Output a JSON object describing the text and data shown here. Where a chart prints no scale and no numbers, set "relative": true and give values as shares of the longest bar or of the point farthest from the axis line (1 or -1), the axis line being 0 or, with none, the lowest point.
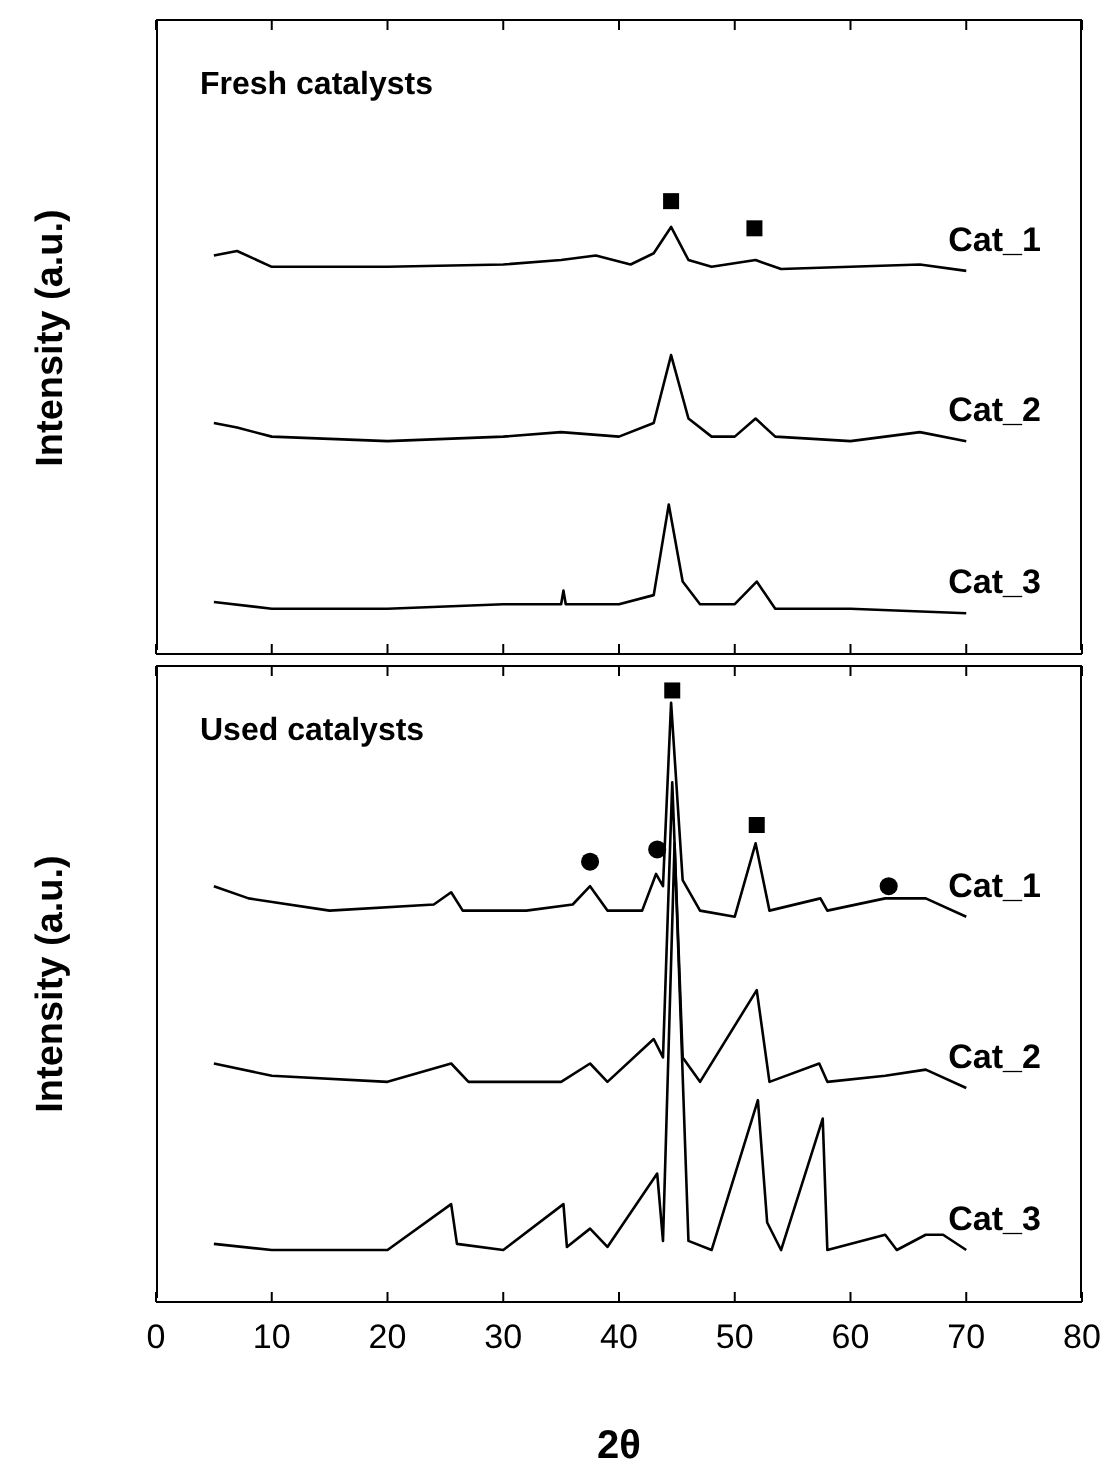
{
  "chart_data": [
    {
      "type": "line",
      "title": "Fresh catalysts",
      "ylabel": "Intensity (a.u.)",
      "relative": true,
      "xlim": [
        0,
        80
      ],
      "xticks": [
        0,
        10,
        20,
        30,
        40,
        50,
        60,
        70,
        80
      ],
      "tick_labels": false,
      "grid": false,
      "legend": false,
      "marker": "none",
      "line_style": "solid",
      "series": [
        {
          "name": "Cat_1",
          "color": "#000000",
          "x": [
            5,
            7,
            10,
            20,
            30,
            35,
            38,
            41,
            43,
            44.5,
            46,
            48,
            51.8,
            54,
            60,
            66,
            70
          ],
          "values": [
            0.88,
            0.89,
            0.855,
            0.855,
            0.86,
            0.87,
            0.88,
            0.86,
            0.885,
            0.943,
            0.87,
            0.855,
            0.87,
            0.85,
            0.855,
            0.86,
            0.846
          ]
        },
        {
          "name": "Cat_2",
          "color": "#000000",
          "x": [
            5,
            7,
            10,
            20,
            30,
            35,
            40,
            43,
            44.5,
            46,
            48,
            50,
            51.8,
            53.5,
            60,
            66,
            70
          ],
          "values": [
            0.51,
            0.5,
            0.48,
            0.47,
            0.48,
            0.49,
            0.48,
            0.51,
            0.66,
            0.52,
            0.48,
            0.48,
            0.52,
            0.48,
            0.47,
            0.49,
            0.47
          ]
        },
        {
          "name": "Cat_3",
          "color": "#000000",
          "x": [
            5,
            10,
            20,
            30,
            35,
            35.2,
            35.4,
            40,
            43,
            44.3,
            45.5,
            47,
            50,
            51.9,
            53.5,
            60,
            70
          ],
          "values": [
            0.115,
            0.1,
            0.1,
            0.11,
            0.11,
            0.14,
            0.11,
            0.11,
            0.13,
            0.33,
            0.16,
            0.11,
            0.11,
            0.16,
            0.1,
            0.1,
            0.09
          ]
        },
        {
          "type": "scatter",
          "marker": "square",
          "color": "#000000",
          "x": [
            44.5,
            51.7
          ],
          "values": [
            1,
            0.94
          ]
        }
      ]
    },
    {
      "type": "line",
      "title": "Used catalysts",
      "ylabel": "Intensity (a.u.)",
      "xlabel": "2θ",
      "relative": true,
      "xlim": [
        0,
        80
      ],
      "xticks": [
        0,
        10,
        20,
        30,
        40,
        50,
        60,
        70,
        80
      ],
      "tick_labels": "x",
      "grid": false,
      "legend": false,
      "marker": "none",
      "line_style": "solid",
      "series": [
        {
          "name": "Cat_1",
          "color": "#000000",
          "x": [
            5,
            8,
            15,
            24,
            25.5,
            26.5,
            32,
            36,
            37.5,
            39,
            42,
            43.2,
            43.8,
            44.5,
            45.5,
            47,
            50,
            51.8,
            53,
            57.4,
            58,
            63,
            66.5,
            70
          ],
          "values": [
            0.68,
            0.66,
            0.64,
            0.65,
            0.67,
            0.64,
            0.64,
            0.65,
            0.68,
            0.64,
            0.64,
            0.7,
            0.68,
            0.98,
            0.69,
            0.64,
            0.63,
            0.75,
            0.64,
            0.66,
            0.64,
            0.66,
            0.66,
            0.63
          ]
        },
        {
          "name": "Cat_2",
          "color": "#000000",
          "x": [
            5,
            10,
            20,
            25.5,
            27,
            35,
            37.5,
            39,
            43,
            43.8,
            44.6,
            45.5,
            47,
            51.9,
            53,
            57.3,
            58,
            63,
            66.5,
            70
          ],
          "values": [
            0.39,
            0.37,
            0.36,
            0.39,
            0.36,
            0.36,
            0.39,
            0.36,
            0.43,
            0.4,
            0.85,
            0.4,
            0.36,
            0.51,
            0.36,
            0.39,
            0.36,
            0.37,
            0.38,
            0.35
          ]
        },
        {
          "name": "Cat_3",
          "color": "#000000",
          "x": [
            5,
            10,
            20,
            25.5,
            26,
            30,
            35.2,
            35.5,
            37.5,
            39,
            43.3,
            43.8,
            44.8,
            46,
            48,
            52,
            52.8,
            54,
            57.6,
            58,
            63,
            64,
            66.5,
            68,
            70
          ],
          "values": [
            0.095,
            0.085,
            0.085,
            0.16,
            0.095,
            0.085,
            0.16,
            0.09,
            0.12,
            0.09,
            0.21,
            0.1,
            0.75,
            0.1,
            0.085,
            0.33,
            0.13,
            0.085,
            0.3,
            0.085,
            0.11,
            0.085,
            0.11,
            0.11,
            0.085
          ]
        },
        {
          "type": "scatter",
          "marker": "circle",
          "color": "#000000",
          "x": [
            37.5,
            43.3,
            63.3
          ],
          "values": [
            0.72,
            0.74,
            0.68
          ]
        },
        {
          "type": "scatter",
          "marker": "square",
          "color": "#000000",
          "x": [
            44.6,
            51.9
          ],
          "values": [
            1,
            0.78
          ]
        }
      ]
    }
  ]
}
